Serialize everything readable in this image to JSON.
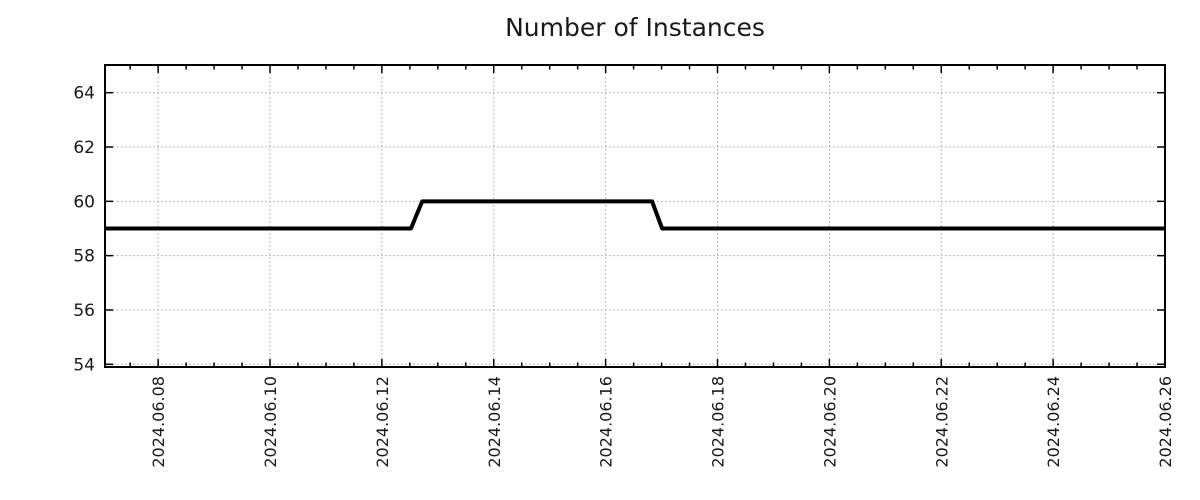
{
  "chart_data": {
    "type": "line",
    "title": "Number of Instances",
    "x_axis": {
      "unit": "date (year.month.day)",
      "tick_days": [
        8,
        10,
        12,
        14,
        16,
        18,
        20,
        22,
        24,
        26
      ],
      "tick_labels": [
        "2024.06.08",
        "2024.06.10",
        "2024.06.12",
        "2024.06.14",
        "2024.06.16",
        "2024.06.18",
        "2024.06.20",
        "2024.06.22",
        "2024.06.24",
        "2024.06.26"
      ],
      "minor_tick_step_days": 0.5,
      "xlim_days": [
        7.05,
        26.0
      ]
    },
    "y_axis": {
      "ticks": [
        54,
        56,
        58,
        60,
        62,
        64
      ],
      "tick_labels": [
        "54",
        "56",
        "58",
        "60",
        "62",
        "64"
      ],
      "ylim": [
        53.9,
        65.02
      ]
    },
    "series": [
      {
        "name": "Number of Instances",
        "color": "#000000",
        "line_width": 4,
        "points_day_value": [
          [
            7.05,
            59
          ],
          [
            12.52,
            59
          ],
          [
            12.72,
            60
          ],
          [
            16.83,
            60
          ],
          [
            17.01,
            59
          ],
          [
            26.0,
            59
          ]
        ]
      }
    ],
    "grid": {
      "style": "dotted",
      "color": "#a3a3a3",
      "on": true
    },
    "colors": {
      "axis": "#000000",
      "text": "#1a1a1a",
      "background": "#ffffff"
    },
    "legend": {
      "visible": false
    }
  }
}
